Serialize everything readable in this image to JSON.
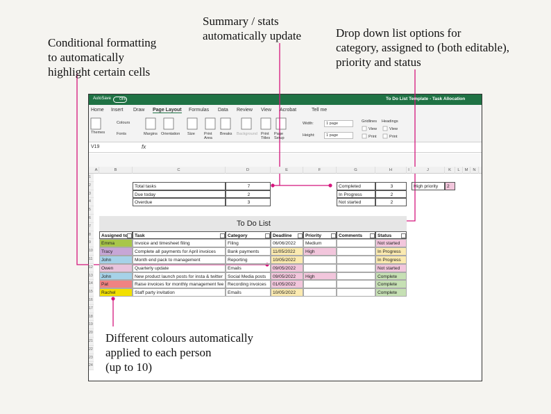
{
  "annotations": [
    {
      "lines": [
        "Conditional formatting",
        "to automatically",
        "highlight certain cells"
      ]
    },
    {
      "lines": [
        "Summary / stats",
        "automatically update"
      ]
    },
    {
      "lines": [
        "Drop down list options for",
        "category, assigned to (both editable),",
        "priority and status"
      ]
    },
    {
      "lines": [
        "Different colours automatically",
        "applied to each person",
        "(up to 10)"
      ]
    }
  ],
  "window": {
    "autosave": "AutoSave",
    "autosave_state": "OFF",
    "title": "To Do List Template - Task Allocation"
  },
  "menu": [
    "Home",
    "Insert",
    "Draw",
    "Page Layout",
    "Formulas",
    "Data",
    "Review",
    "View",
    "Acrobat",
    "Tell me"
  ],
  "ribbon": {
    "themes": "Themes",
    "colours": "Colours",
    "fonts": "Fonts",
    "margins": "Margins",
    "orientation": "Orientation",
    "size": "Size",
    "print_area": "Print Area",
    "breaks": "Breaks",
    "background": "Background",
    "print_titles": "Print Titles",
    "page_setup": "Page Setup",
    "width": "Width:",
    "width_value": "1 page",
    "height": "Height:",
    "height_value": "1 page",
    "gridlines": "Gridlines",
    "headings": "Headings",
    "view_1": "View",
    "view_2": "View",
    "print_1": "Print",
    "print_2": "Print"
  },
  "formula_bar": {
    "cell": "V19",
    "fx": "fx"
  },
  "columns": [
    "A",
    "B",
    "C",
    "D",
    "E",
    "F",
    "G",
    "H",
    "I",
    "J",
    "K",
    "L",
    "M",
    "N"
  ],
  "rows": [
    1,
    2,
    3,
    4,
    5,
    6,
    7,
    8,
    9,
    10,
    11,
    12,
    13,
    14,
    15,
    16,
    17,
    18,
    19,
    20,
    21,
    22,
    23,
    24
  ],
  "summary": {
    "left": [
      [
        "Total tasks",
        7
      ],
      [
        "Due today",
        2
      ],
      [
        "Overdue",
        3
      ]
    ],
    "right": [
      [
        "Completed",
        3
      ],
      [
        "In Progress",
        2
      ],
      [
        "Not started",
        2
      ]
    ],
    "high_priority": [
      "High priority",
      2
    ]
  },
  "list_title": "To Do List",
  "table": {
    "header": [
      "Assigned to",
      "Task",
      "Category",
      "Deadline",
      "Priority",
      "Comments",
      "Status"
    ],
    "rows": [
      [
        "Emma",
        "Invoice and timesheet filing",
        "Filing",
        "06/06/2022",
        "Medium",
        null,
        "Not started"
      ],
      [
        "Tracy",
        "Complete all payments for April invoices",
        "Bank payments",
        "11/05/2022",
        "High",
        null,
        "In Progress"
      ],
      [
        "John",
        "Month end pack to management",
        "Reporting",
        "10/05/2022",
        null,
        null,
        "In Progress"
      ],
      [
        "Owen",
        "Quarterly update",
        "Emails",
        "09/05/2022",
        null,
        null,
        "Not started"
      ],
      [
        "John",
        "New product launch posts for insta & twitter",
        "Social Media posts",
        "09/05/2022",
        "High",
        null,
        "Complete"
      ],
      [
        "Pat",
        "Raise invoices for monthly management fee",
        "Recording invoices",
        "01/05/2022",
        null,
        null,
        "Complete"
      ],
      [
        "Rachel",
        "Staff party invitation",
        "Emails",
        "10/05/2022",
        null,
        null,
        "Complete"
      ]
    ],
    "fills": [
      [
        "#a8c64a",
        null,
        null,
        null,
        null,
        null,
        "#f2c6dc"
      ],
      [
        "#c7a6d6",
        null,
        null,
        "#fbeab0",
        "#f2c6dc",
        null,
        "#fbeab0"
      ],
      [
        "#a6d2e8",
        null,
        null,
        "#fbeab0",
        null,
        null,
        "#fbeab0"
      ],
      [
        "#e9c3dc",
        null,
        null,
        "#f2c6dc",
        null,
        null,
        "#f2c6dc"
      ],
      [
        "#a6d2e8",
        null,
        null,
        "#f2c6dc",
        "#f2c6dc",
        null,
        "#c6e0b4"
      ],
      [
        "#f08282",
        null,
        null,
        "#f2c6dc",
        null,
        null,
        "#c6e0b4"
      ],
      [
        "#f2e000",
        null,
        null,
        "#fbeab0",
        null,
        null,
        "#c6e0b4"
      ]
    ]
  }
}
